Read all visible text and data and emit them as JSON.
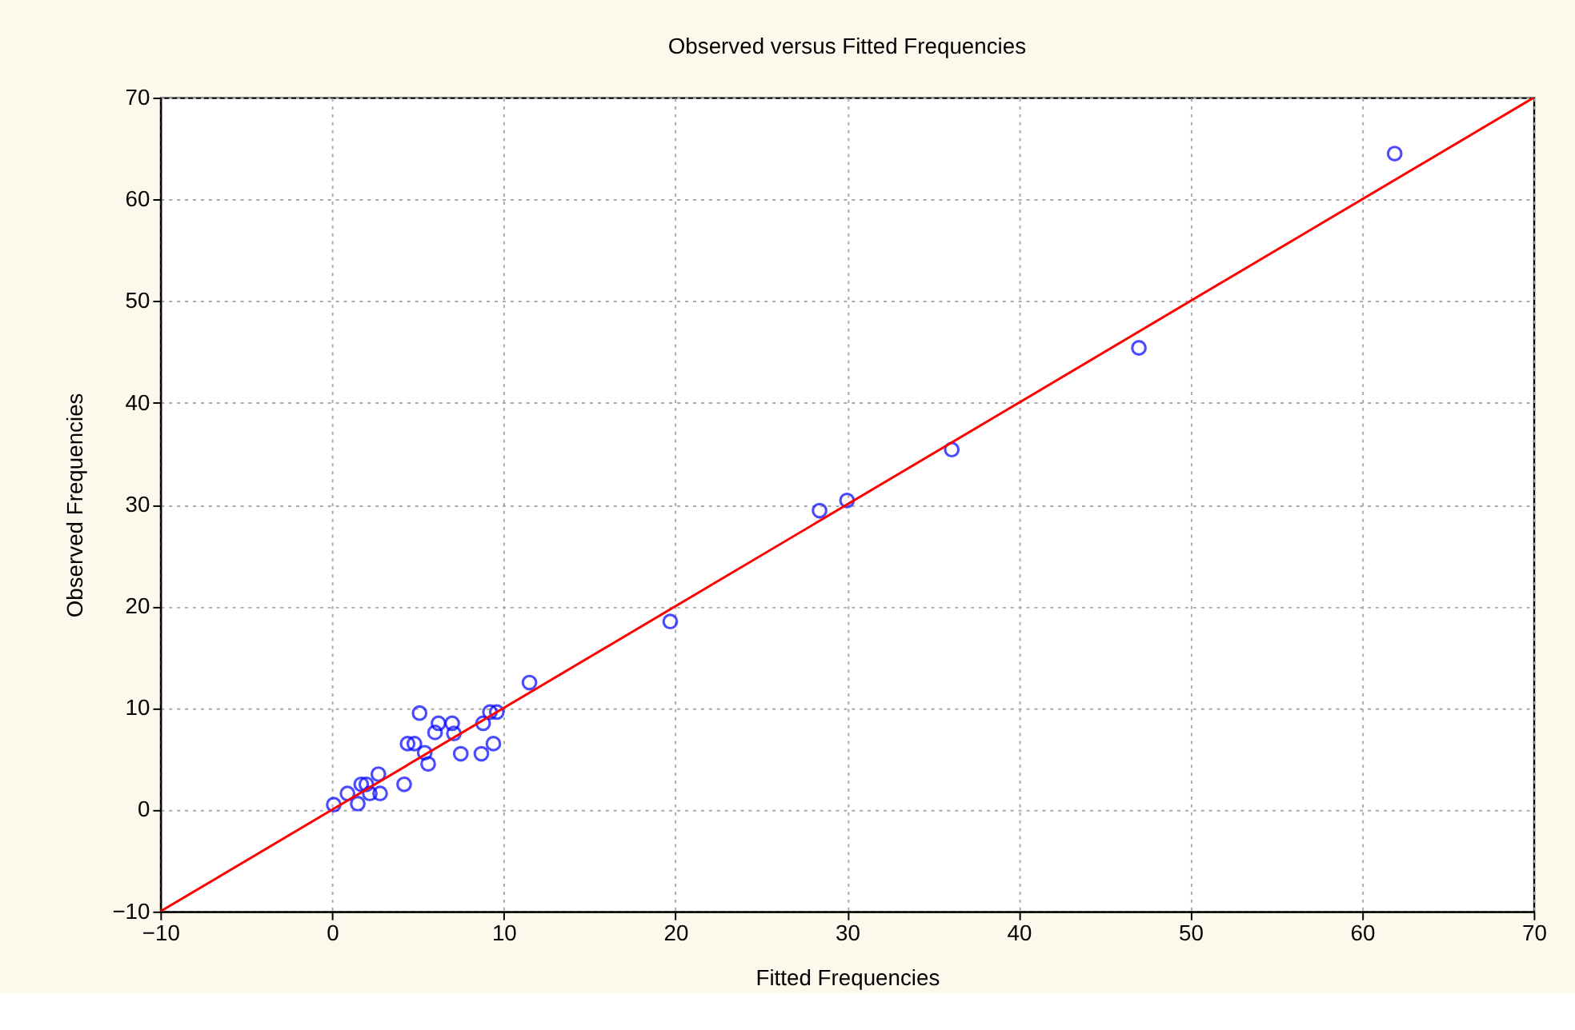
{
  "chart_data": {
    "type": "scatter",
    "title": "Observed versus Fitted Frequencies",
    "xlabel": "Fitted Frequencies",
    "ylabel": "Observed Frequencies",
    "xlim": [
      -10,
      70
    ],
    "ylim": [
      -10,
      70
    ],
    "xticks": [
      -10,
      0,
      10,
      20,
      30,
      40,
      50,
      60,
      70
    ],
    "yticks": [
      -10,
      0,
      10,
      20,
      30,
      40,
      50,
      60,
      70
    ],
    "grid": true,
    "series": [
      {
        "color": "#0000ff",
        "marker": "circle",
        "x": [
          61.9,
          47,
          36.1,
          30,
          28.4,
          19.7,
          11.5,
          5.1,
          6.2,
          7.0,
          6.0,
          7.1,
          9.2,
          9.6,
          8.8,
          4.4,
          4.8,
          5.4,
          7.5,
          8.7,
          9.4,
          5.6,
          2.7,
          4.2,
          1.7,
          2.0,
          0.9,
          2.2,
          2.8,
          1.5,
          0.1
        ],
        "values": [
          64.5,
          45.4,
          35.4,
          30.4,
          29.4,
          18.5,
          12.5,
          9.5,
          8.5,
          8.5,
          7.6,
          7.5,
          9.6,
          9.6,
          8.5,
          6.5,
          6.5,
          5.6,
          5.5,
          5.5,
          6.5,
          4.5,
          3.5,
          2.5,
          2.5,
          2.5,
          1.6,
          1.6,
          1.6,
          0.6,
          0.5
        ]
      },
      {
        "type": "line",
        "color": "#ff0000",
        "line_style": "solid",
        "marker": "none",
        "x": [
          -10,
          70
        ],
        "values": [
          -10,
          70
        ]
      }
    ]
  }
}
